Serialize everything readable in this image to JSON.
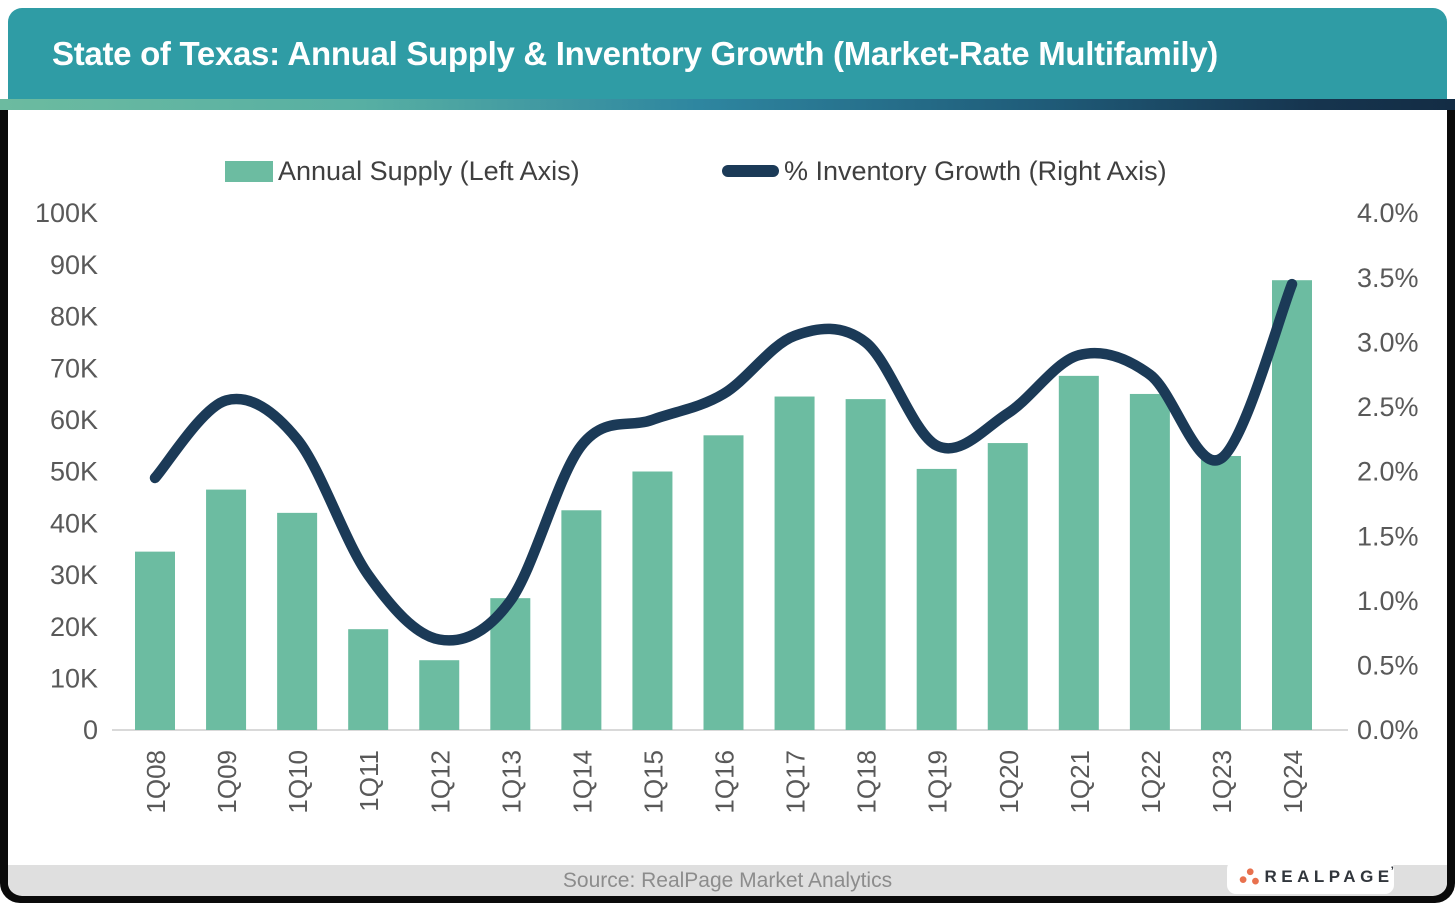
{
  "header": {
    "title": "State of Texas: Annual Supply & Inventory Growth (Market-Rate Multifamily)"
  },
  "legend": {
    "supply_label": "Annual Supply (Left Axis)",
    "growth_label": "% Inventory Growth (Right Axis)"
  },
  "chart_data": {
    "type": "bar",
    "subtype": "combo-bar-line",
    "categories": [
      "1Q08",
      "1Q09",
      "1Q10",
      "1Q11",
      "1Q12",
      "1Q13",
      "1Q14",
      "1Q15",
      "1Q16",
      "1Q17",
      "1Q18",
      "1Q19",
      "1Q20",
      "1Q21",
      "1Q22",
      "1Q23",
      "1Q24"
    ],
    "series": [
      {
        "name": "Annual Supply (Left Axis)",
        "type": "bar",
        "axis": "left",
        "values": [
          34500,
          46500,
          42000,
          19500,
          13500,
          25500,
          42500,
          50000,
          57000,
          64500,
          64000,
          50500,
          55500,
          68500,
          65000,
          53000,
          87000
        ]
      },
      {
        "name": "% Inventory Growth (Right Axis)",
        "type": "line",
        "axis": "right",
        "values": [
          1.95,
          2.55,
          2.25,
          1.2,
          0.7,
          1.0,
          2.2,
          2.4,
          2.6,
          3.05,
          3.0,
          2.2,
          2.45,
          2.9,
          2.75,
          2.1,
          3.45
        ]
      }
    ],
    "title": "State of Texas: Annual Supply & Inventory Growth (Market-Rate Multifamily)",
    "xlabel": "",
    "ylabel_left": "",
    "ylabel_right": "",
    "left_axis": {
      "min": 0,
      "max": 100000,
      "ticks": [
        "0",
        "10K",
        "20K",
        "30K",
        "40K",
        "50K",
        "60K",
        "70K",
        "80K",
        "90K",
        "100K"
      ]
    },
    "right_axis": {
      "min": 0,
      "max": 4,
      "ticks": [
        "0.0%",
        "0.5%",
        "1.0%",
        "1.5%",
        "2.0%",
        "2.5%",
        "3.0%",
        "3.5%",
        "4.0%"
      ]
    },
    "grid": false,
    "legend_position": "top"
  },
  "footer": {
    "source": "Source: RealPage Market Analytics",
    "logo_text": "REALPAGE",
    "logo_tick": "’"
  },
  "colors": {
    "header_bg": "#2f9ca5",
    "bar": "#6cbca1",
    "line": "#1b3a57",
    "axis_text": "#595959",
    "legend_text": "#3f3f3f",
    "axis_line": "#d9d9d9",
    "footer_bg": "#dfdfdf",
    "footer_text": "#8c8c8c",
    "frame": "#0a0a0a",
    "logo_orange": "#e8714e",
    "accent_left": "#6cbba0",
    "accent_mid": "#2e86a0",
    "accent_right": "#132c44"
  }
}
